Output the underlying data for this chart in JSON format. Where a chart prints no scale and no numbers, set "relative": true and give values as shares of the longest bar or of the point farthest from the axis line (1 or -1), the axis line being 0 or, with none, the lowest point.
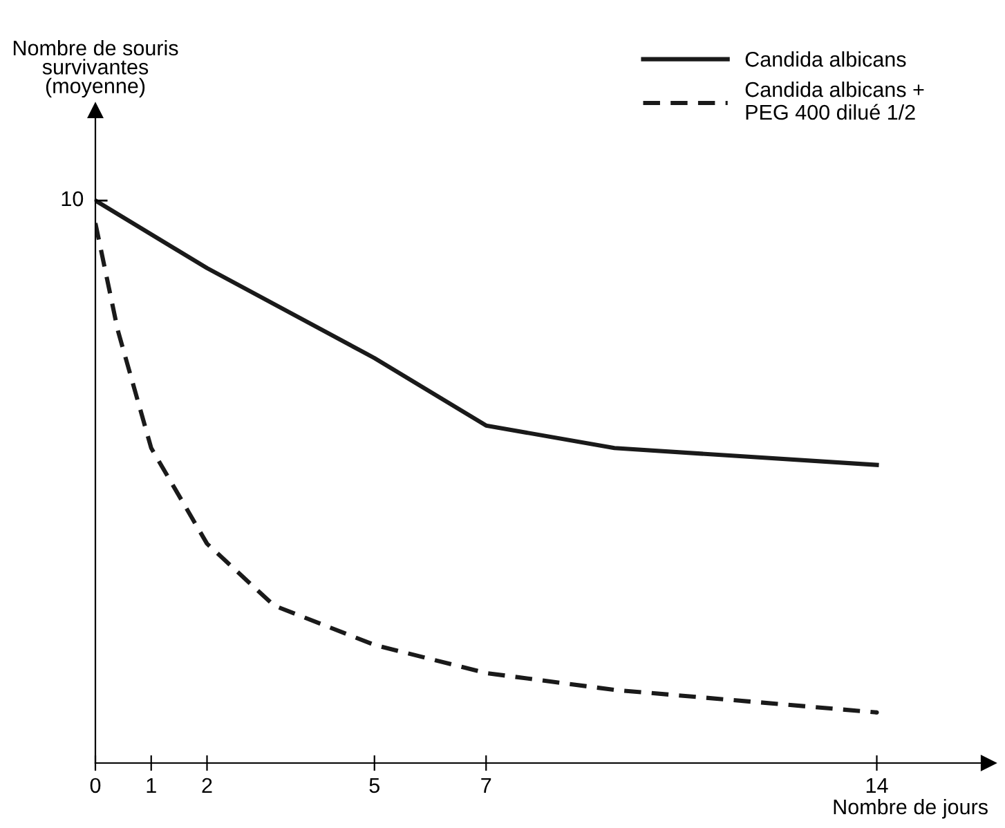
{
  "chart_data": {
    "type": "line",
    "relative": true,
    "xlabel": "Nombre de jours",
    "ylabel": "Nombre de souris\nsurvivantes\n(moyenne)",
    "xlim": [
      0,
      16
    ],
    "xticks": [
      0,
      1,
      2,
      5,
      7,
      14
    ],
    "legend": "top right",
    "grid": false,
    "annotations": [
      {
        "text": "10",
        "x": 0,
        "y": 1
      }
    ],
    "series": [
      {
        "name": "Candida albicans",
        "color": "#1a1a1a",
        "line_style": "solid",
        "x": [
          0,
          2,
          5,
          7,
          9.3,
          14
        ],
        "values": [
          1.0,
          0.88,
          0.72,
          0.6,
          0.56,
          0.53
        ]
      },
      {
        "name": "Candida albicans +\nPEG 400 dilué 1/2",
        "color": "#1a1a1a",
        "line_style": "dashed",
        "x": [
          0,
          0.4,
          1,
          2,
          3.2,
          5,
          7,
          9.3,
          14
        ],
        "values": [
          0.96,
          0.77,
          0.56,
          0.39,
          0.28,
          0.21,
          0.16,
          0.13,
          0.09
        ]
      }
    ]
  }
}
